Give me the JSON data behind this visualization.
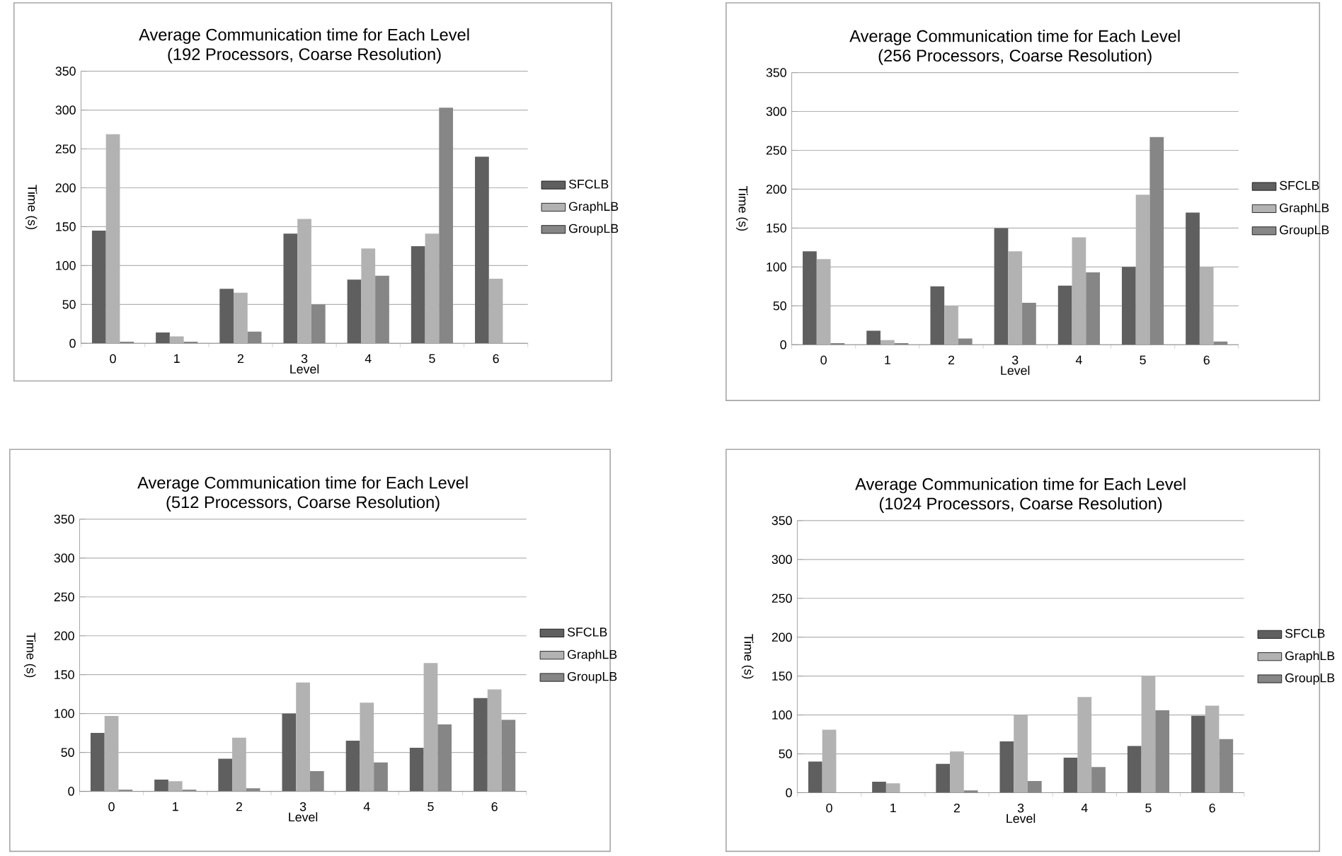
{
  "chart_data": [
    {
      "type": "bar",
      "title": "Average Communication time for Each Level",
      "subtitle": "(192 Processors, Coarse Resolution)",
      "xlabel": "Level",
      "ylabel": "Time (s)",
      "categories": [
        "0",
        "1",
        "2",
        "3",
        "4",
        "5",
        "6"
      ],
      "ylim": [
        0,
        350
      ],
      "yticks": [
        0,
        50,
        100,
        150,
        200,
        250,
        300,
        350
      ],
      "grid": "y",
      "legend": "right",
      "series": [
        {
          "name": "SFCLB",
          "color": "#5f5f5f",
          "values": [
            145,
            14,
            70,
            141,
            82,
            125,
            240
          ]
        },
        {
          "name": "GraphLB",
          "color": "#b2b2b2",
          "values": [
            269,
            9,
            65,
            160,
            122,
            141,
            83
          ]
        },
        {
          "name": "GroupLB",
          "color": "#868686",
          "values": [
            2,
            2,
            15,
            50,
            87,
            303,
            null
          ]
        }
      ]
    },
    {
      "type": "bar",
      "title": "Average Communication time for Each Level",
      "subtitle": "(256 Processors, Coarse Resolution)",
      "xlabel": "Level",
      "ylabel": "Time (s)",
      "categories": [
        "0",
        "1",
        "2",
        "3",
        "4",
        "5",
        "6"
      ],
      "ylim": [
        0,
        350
      ],
      "yticks": [
        0,
        50,
        100,
        150,
        200,
        250,
        300,
        350
      ],
      "grid": "y",
      "legend": "right",
      "series": [
        {
          "name": "SFCLB",
          "color": "#5f5f5f",
          "values": [
            120,
            18,
            75,
            150,
            76,
            100,
            170
          ]
        },
        {
          "name": "GraphLB",
          "color": "#b2b2b2",
          "values": [
            110,
            6,
            50,
            120,
            138,
            193,
            100
          ]
        },
        {
          "name": "GroupLB",
          "color": "#868686",
          "values": [
            2,
            2,
            8,
            54,
            93,
            267,
            4
          ]
        }
      ]
    },
    {
      "type": "bar",
      "title": "Average Communication time for Each Level",
      "subtitle": "(512 Processors, Coarse Resolution)",
      "xlabel": "Level",
      "ylabel": "Time (s)",
      "categories": [
        "0",
        "1",
        "2",
        "3",
        "4",
        "5",
        "6"
      ],
      "ylim": [
        0,
        350
      ],
      "yticks": [
        0,
        50,
        100,
        150,
        200,
        250,
        300,
        350
      ],
      "grid": "y",
      "legend": "right",
      "series": [
        {
          "name": "SFCLB",
          "color": "#5f5f5f",
          "values": [
            75,
            15,
            42,
            100,
            65,
            56,
            120
          ]
        },
        {
          "name": "GraphLB",
          "color": "#b2b2b2",
          "values": [
            97,
            13,
            69,
            140,
            114,
            165,
            131
          ]
        },
        {
          "name": "GroupLB",
          "color": "#868686",
          "values": [
            2,
            2,
            4,
            26,
            37,
            86,
            92
          ]
        }
      ]
    },
    {
      "type": "bar",
      "title": "Average Communication time for Each Level",
      "subtitle": "(1024 Processors, Coarse Resolution)",
      "xlabel": "Level",
      "ylabel": "Time (s)",
      "categories": [
        "0",
        "1",
        "2",
        "3",
        "4",
        "5",
        "6"
      ],
      "ylim": [
        0,
        350
      ],
      "yticks": [
        0,
        50,
        100,
        150,
        200,
        250,
        300,
        350
      ],
      "grid": "y",
      "legend": "right",
      "series": [
        {
          "name": "SFCLB",
          "color": "#5f5f5f",
          "values": [
            40,
            14,
            37,
            66,
            45,
            60,
            99
          ]
        },
        {
          "name": "GraphLB",
          "color": "#b2b2b2",
          "values": [
            81,
            12,
            53,
            100,
            123,
            150,
            112
          ]
        },
        {
          "name": "GroupLB",
          "color": "#868686",
          "values": [
            null,
            null,
            3,
            15,
            33,
            106,
            69
          ]
        }
      ]
    }
  ]
}
